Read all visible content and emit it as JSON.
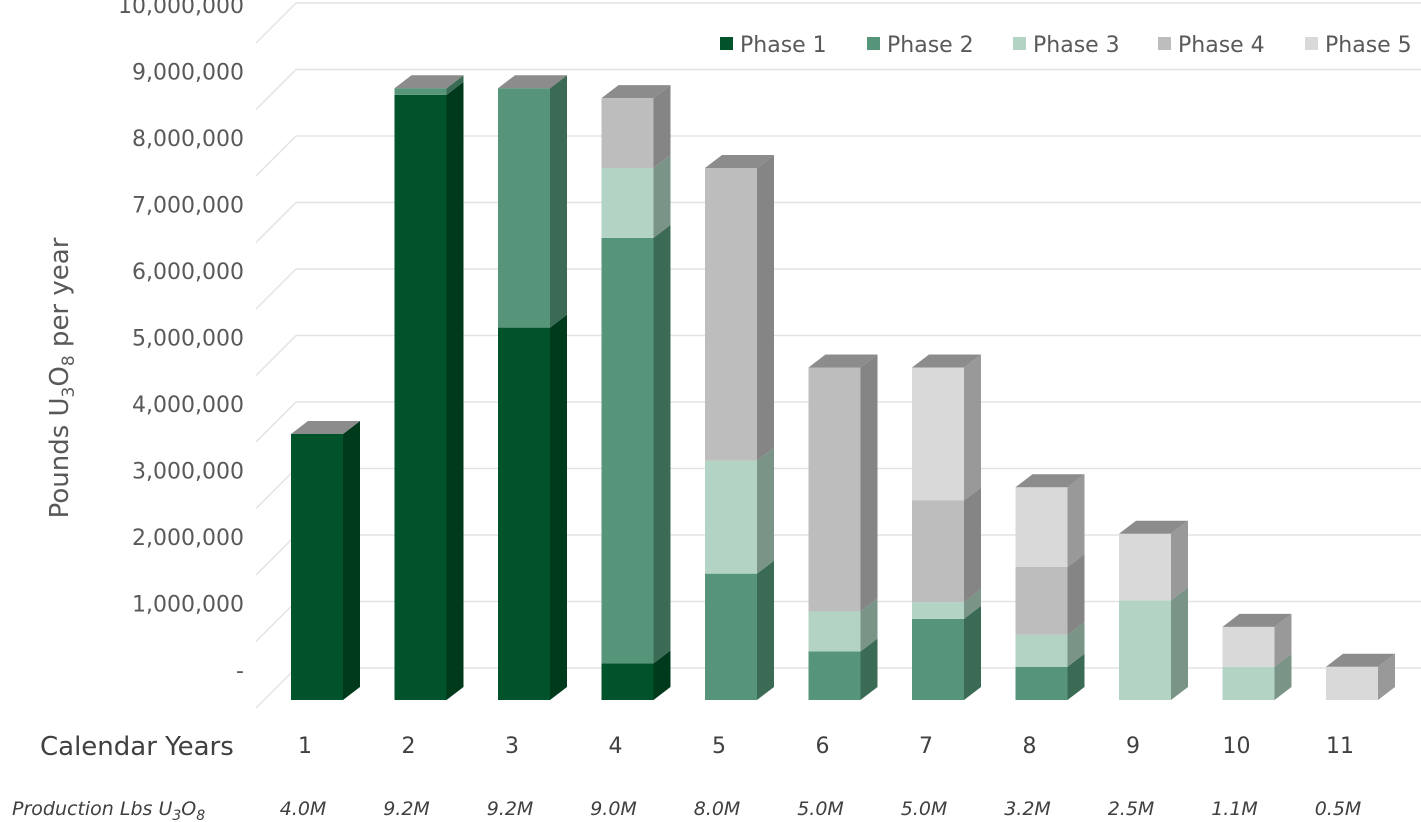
{
  "chart_data": {
    "type": "bar",
    "stacked": true,
    "style": "3d-stacked-column",
    "title": "",
    "ylabel": {
      "main": "Pounds U",
      "sub1": "3",
      "mid": "O",
      "sub2": "8",
      "tail": " per year"
    },
    "xlabel": "Calendar Years",
    "ylim": [
      0,
      10000000
    ],
    "yticks": [
      {
        "value": 0,
        "label": "-"
      },
      {
        "value": 1000000,
        "label": "1,000,000"
      },
      {
        "value": 2000000,
        "label": "2,000,000"
      },
      {
        "value": 3000000,
        "label": "3,000,000"
      },
      {
        "value": 4000000,
        "label": "4,000,000"
      },
      {
        "value": 5000000,
        "label": "5,000,000"
      },
      {
        "value": 6000000,
        "label": "6,000,000"
      },
      {
        "value": 7000000,
        "label": "7,000,000"
      },
      {
        "value": 8000000,
        "label": "8,000,000"
      },
      {
        "value": 9000000,
        "label": "9,000,000"
      },
      {
        "value": 10000000,
        "label": "10,000,000"
      }
    ],
    "grid": true,
    "legend_position": "top-right",
    "categories": [
      "1",
      "2",
      "3",
      "4",
      "5",
      "6",
      "7",
      "8",
      "9",
      "10",
      "11"
    ],
    "series": [
      {
        "name": "Phase 1",
        "color": "#00532a",
        "side": "#003a1d",
        "values": [
          4000000,
          9100000,
          5600000,
          550000,
          0,
          0,
          0,
          0,
          0,
          0,
          0
        ]
      },
      {
        "name": "Phase 2",
        "color": "#56957a",
        "side": "#3b6b55",
        "values": [
          0,
          100000,
          3600000,
          6400000,
          1900000,
          730000,
          1220000,
          500000,
          0,
          0,
          0
        ]
      },
      {
        "name": "Phase 3",
        "color": "#b3d3c5",
        "side": "#7a9488",
        "values": [
          0,
          0,
          0,
          1050000,
          1700000,
          600000,
          250000,
          480000,
          1500000,
          500000,
          0
        ]
      },
      {
        "name": "Phase 4",
        "color": "#bdbdbd",
        "side": "#858585",
        "values": [
          0,
          0,
          0,
          1050000,
          4400000,
          3670000,
          1530000,
          1020000,
          0,
          0,
          0
        ]
      },
      {
        "name": "Phase 5",
        "color": "#d9d9d9",
        "side": "#999999",
        "values": [
          0,
          0,
          0,
          0,
          0,
          0,
          2000000,
          1200000,
          1000000,
          600000,
          500000
        ]
      }
    ],
    "production": {
      "label": {
        "main": "Production Lbs U",
        "sub1": "3",
        "mid": "O",
        "sub2": "8"
      },
      "values": [
        "4.0M",
        "9.2M",
        "9.2M",
        "9.0M",
        "8.0M",
        "5.0M",
        "5.0M",
        "3.2M",
        "2.5M",
        "1.1M",
        "0.5M"
      ]
    }
  }
}
